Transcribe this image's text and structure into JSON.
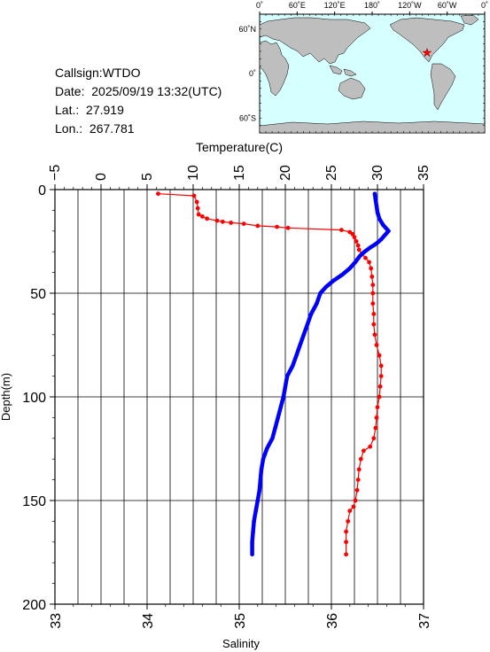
{
  "station": {
    "callsign_label": "Callsign:",
    "callsign": "WTDO",
    "date_label": "Date:",
    "date": "2025/09/19 13:32(UTC)",
    "lat_label": "Lat.:",
    "lat": "27.919",
    "lon_label": "Lon.:",
    "lon": "267.781"
  },
  "map": {
    "lon_ticks": [
      "0˚",
      "60˚E",
      "120˚E",
      "180˚",
      "120˚W",
      "60˚W",
      "0˚"
    ],
    "lat_ticks": [
      "60˚N",
      "0˚",
      "60˚S"
    ],
    "ocean_color": "#d6ffff",
    "land_color": "#bebebe",
    "marker_color": "#ff0000",
    "marker_lon": 267.781,
    "marker_lat": 27.919
  },
  "chart_data": {
    "type": "line",
    "ylabel": "Depth(m)",
    "top_xlabel": "Temperature(C)",
    "bottom_xlabel": "Salinity",
    "y_range": [
      0,
      200
    ],
    "y_inverted": true,
    "y_ticks": [
      "0",
      "50",
      "100",
      "150",
      "200"
    ],
    "temperature_range": [
      -5,
      35
    ],
    "temperature_ticks": [
      "−5",
      "0",
      "5",
      "10",
      "15",
      "20",
      "25",
      "30",
      "35"
    ],
    "salinity_range": [
      33,
      37
    ],
    "salinity_ticks": [
      "33",
      "34",
      "35",
      "36",
      "37"
    ],
    "grid": true,
    "series": [
      {
        "name": "",
        "axis": "temperature",
        "color": "#ff0000",
        "points": [
          [
            6.2,
            2
          ],
          [
            10.1,
            3
          ],
          [
            10.4,
            6
          ],
          [
            10.5,
            9
          ],
          [
            10.6,
            12
          ],
          [
            11.0,
            13
          ],
          [
            11.5,
            14
          ],
          [
            12.6,
            15
          ],
          [
            13.2,
            15.5
          ],
          [
            14.1,
            16
          ],
          [
            15.5,
            16.5
          ],
          [
            17.0,
            17.5
          ],
          [
            19.1,
            18
          ],
          [
            20.3,
            18.5
          ],
          [
            26.1,
            19.5
          ],
          [
            27.0,
            20.5
          ],
          [
            27.3,
            21.5
          ],
          [
            27.5,
            23
          ],
          [
            27.7,
            25
          ],
          [
            27.9,
            27
          ],
          [
            28.0,
            29
          ],
          [
            28.3,
            31
          ],
          [
            28.7,
            33
          ],
          [
            29.1,
            35
          ],
          [
            29.3,
            38
          ],
          [
            29.4,
            42
          ],
          [
            29.5,
            46
          ],
          [
            29.5,
            50
          ],
          [
            29.5,
            55
          ],
          [
            29.6,
            60
          ],
          [
            29.6,
            65
          ],
          [
            29.7,
            70
          ],
          [
            29.9,
            75
          ],
          [
            30.2,
            80
          ],
          [
            30.4,
            85
          ],
          [
            30.4,
            90
          ],
          [
            30.3,
            95
          ],
          [
            30.2,
            100
          ],
          [
            30.0,
            105
          ],
          [
            29.9,
            110
          ],
          [
            29.8,
            115
          ],
          [
            29.6,
            120
          ],
          [
            29.2,
            124
          ],
          [
            28.5,
            126
          ],
          [
            28.2,
            130
          ],
          [
            28.0,
            135
          ],
          [
            27.9,
            140
          ],
          [
            27.8,
            145
          ],
          [
            27.6,
            150
          ],
          [
            27.4,
            153
          ],
          [
            27.0,
            155
          ],
          [
            26.8,
            160
          ],
          [
            26.6,
            165
          ],
          [
            26.6,
            170
          ],
          [
            26.6,
            176
          ]
        ]
      },
      {
        "name": "",
        "axis": "salinity",
        "color": "#0000ff",
        "points": [
          [
            36.47,
            2
          ],
          [
            36.48,
            5
          ],
          [
            36.49,
            8
          ],
          [
            36.5,
            11
          ],
          [
            36.52,
            14
          ],
          [
            36.56,
            17
          ],
          [
            36.62,
            20
          ],
          [
            36.58,
            22
          ],
          [
            36.54,
            24
          ],
          [
            36.49,
            26
          ],
          [
            36.42,
            28
          ],
          [
            36.36,
            30
          ],
          [
            36.31,
            32
          ],
          [
            36.26,
            35
          ],
          [
            36.2,
            38
          ],
          [
            36.12,
            41
          ],
          [
            36.02,
            44
          ],
          [
            35.94,
            47
          ],
          [
            35.88,
            50
          ],
          [
            35.84,
            55
          ],
          [
            35.78,
            60
          ],
          [
            35.74,
            65
          ],
          [
            35.7,
            70
          ],
          [
            35.66,
            75
          ],
          [
            35.62,
            80
          ],
          [
            35.58,
            85
          ],
          [
            35.52,
            90
          ],
          [
            35.5,
            95
          ],
          [
            35.48,
            100
          ],
          [
            35.45,
            105
          ],
          [
            35.42,
            110
          ],
          [
            35.39,
            115
          ],
          [
            35.36,
            120
          ],
          [
            35.3,
            125
          ],
          [
            35.26,
            130
          ],
          [
            35.24,
            135
          ],
          [
            35.23,
            140
          ],
          [
            35.22,
            145
          ],
          [
            35.2,
            150
          ],
          [
            35.18,
            155
          ],
          [
            35.16,
            160
          ],
          [
            35.15,
            165
          ],
          [
            35.14,
            170
          ],
          [
            35.14,
            176
          ]
        ]
      }
    ]
  }
}
